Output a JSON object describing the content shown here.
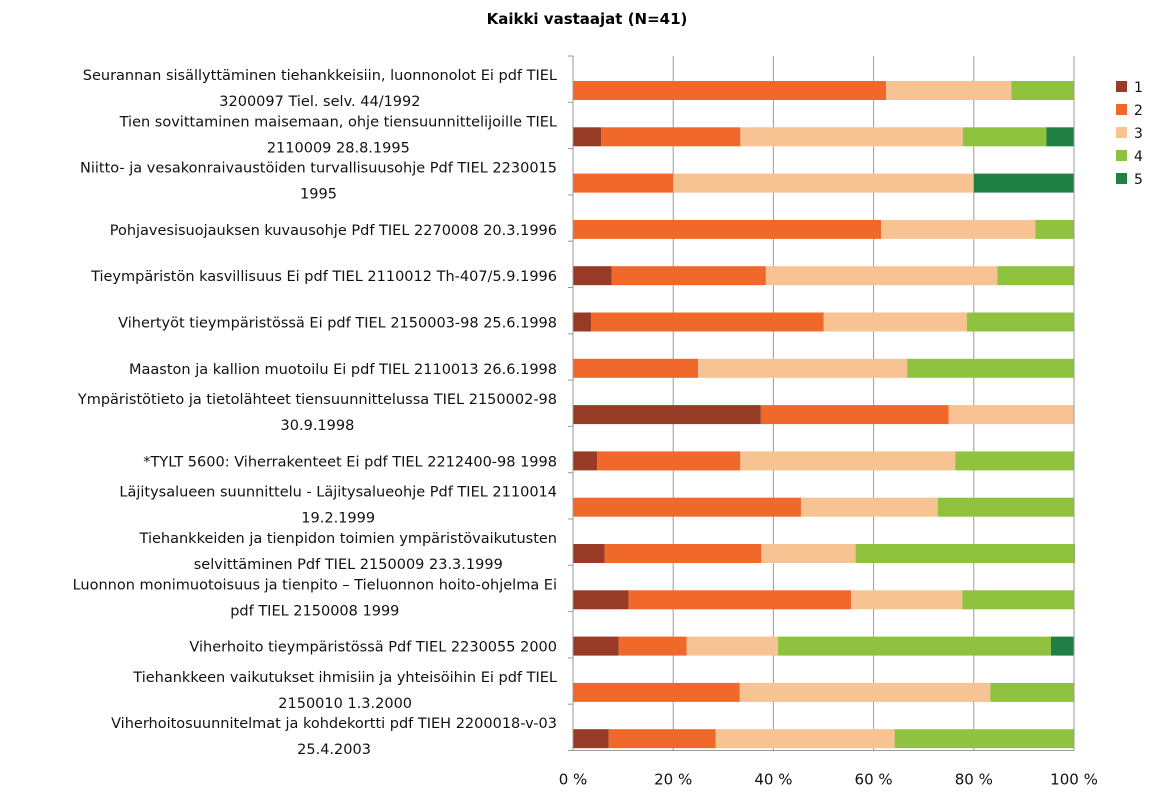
{
  "chart_data": {
    "type": "bar",
    "orientation": "horizontal",
    "stacked": "percent",
    "title": "Kaikki vastaajat (N=41)",
    "xlabel": "",
    "ylabel": "",
    "xlim": [
      0,
      100
    ],
    "x_ticks": [
      "0 %",
      "20 %",
      "40 %",
      "60 %",
      "80 %",
      "100 %"
    ],
    "grid": "vertical",
    "legend_position": "right",
    "categories": [
      [
        "Seurannan sisällyttäminen tiehankkeisiin, luonnonolot Ei pdf TIEL",
        "3200097 Tiel. selv. 44/1992"
      ],
      [
        "Tien sovittaminen maisemaan, ohje tiensuunnittelijoille TIEL",
        "2110009 28.8.1995"
      ],
      [
        "Niitto- ja vesakonraivaustöiden turvallisuusohje Pdf TIEL 2230015",
        "1995"
      ],
      [
        "Pohjavesisuojauksen kuvausohje Pdf TIEL 2270008 20.3.1996"
      ],
      [
        "Tieympäristön kasvillisuus Ei pdf TIEL 2110012 Th-407/5.9.1996"
      ],
      [
        "Vihertyöt tieympäristössä Ei pdf TIEL 2150003-98 25.6.1998"
      ],
      [
        "Maaston ja kallion muotoilu Ei pdf TIEL 2110013 26.6.1998"
      ],
      [
        "Ympäristötieto ja tietolähteet tiensuunnittelussa TIEL 2150002-98",
        "30.9.1998"
      ],
      [
        "*TYLT 5600: Viherrakenteet Ei pdf TIEL 2212400-98 1998"
      ],
      [
        "Läjitysalueen suunnittelu - Läjitysalueohje Pdf TIEL 2110014",
        "19.2.1999"
      ],
      [
        "Tiehankkeiden ja tienpidon toimien ympäristövaikutusten",
        "selvittäminen Pdf TIEL 2150009 23.3.1999"
      ],
      [
        "Luonnon monimuotoisuus ja tienpito – Tieluonnon hoito-ohjelma Ei",
        "pdf TIEL 2150008 1999"
      ],
      [
        "Viherhoito tieympäristössä Pdf TIEL 2230055 2000"
      ],
      [
        "Tiehankkeen vaikutukset ihmisiin ja yhteisöihin Ei pdf TIEL",
        "2150010 1.3.2000"
      ],
      [
        "Viherhoitosuunnitelmat ja kohdekortti pdf TIEH 2200018-v-03",
        "25.4.2003"
      ]
    ],
    "series": [
      {
        "name": "1",
        "color": "#973a26",
        "values": [
          0,
          5.6,
          0,
          0,
          7.7,
          3.6,
          0,
          37.5,
          4.8,
          0,
          6.3,
          11.1,
          9.1,
          0,
          7.1
        ]
      },
      {
        "name": "2",
        "color": "#f0692a",
        "values": [
          62.5,
          27.8,
          20,
          61.5,
          30.8,
          46.4,
          25,
          37.5,
          28.6,
          45.5,
          31.3,
          44.4,
          13.6,
          33.3,
          21.4
        ]
      },
      {
        "name": "3",
        "color": "#f8c393",
        "values": [
          25,
          44.4,
          60,
          30.8,
          46.2,
          28.6,
          41.7,
          25,
          42.9,
          27.3,
          18.8,
          22.2,
          18.2,
          50,
          35.7
        ]
      },
      {
        "name": "4",
        "color": "#8fc23f",
        "values": [
          12.5,
          16.7,
          0,
          7.7,
          15.4,
          21.4,
          33.3,
          0,
          23.8,
          27.3,
          43.8,
          22.2,
          54.5,
          16.7,
          35.7
        ]
      },
      {
        "name": "5",
        "color": "#1f7f45",
        "values": [
          0,
          5.6,
          20,
          0,
          0,
          0,
          0,
          0,
          0,
          0,
          0,
          0,
          4.5,
          0,
          0
        ]
      }
    ]
  }
}
